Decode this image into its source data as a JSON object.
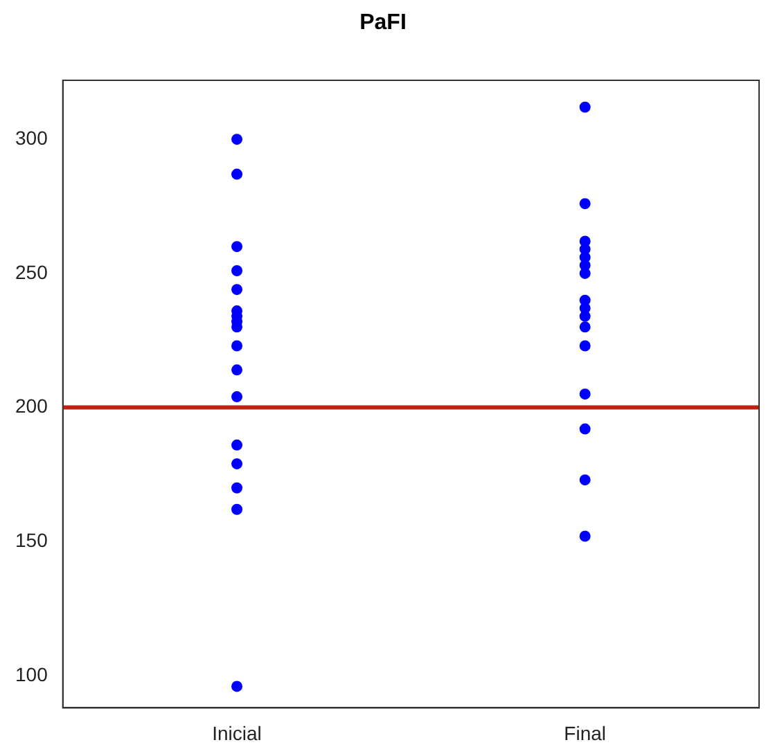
{
  "chart_data": {
    "type": "scatter",
    "title": "PaFI",
    "categories": [
      "Inicial",
      "Final"
    ],
    "series": [
      {
        "color": "#0000ff",
        "x": [
          "Inicial",
          "Inicial",
          "Inicial",
          "Inicial",
          "Inicial",
          "Inicial",
          "Inicial",
          "Inicial",
          "Inicial",
          "Inicial",
          "Inicial",
          "Inicial",
          "Inicial",
          "Inicial",
          "Inicial",
          "Inicial",
          "Inicial",
          "Inicial"
        ],
        "values": [
          300,
          287,
          260,
          251,
          244,
          236,
          234,
          232,
          230,
          223,
          214,
          204,
          186,
          179,
          170,
          162,
          96,
          null
        ]
      },
      {
        "color": "#0000ff",
        "x": [
          "Final",
          "Final",
          "Final",
          "Final",
          "Final",
          "Final",
          "Final",
          "Final",
          "Final",
          "Final",
          "Final",
          "Final",
          "Final",
          "Final",
          "Final",
          "Final",
          "Final",
          "Final"
        ],
        "values": [
          312,
          276,
          262,
          259,
          256,
          253,
          250,
          240,
          237,
          234,
          230,
          223,
          205,
          192,
          173,
          152,
          null,
          null
        ]
      }
    ],
    "marker": "circle",
    "ylim": [
      88,
      322
    ],
    "yticks": [
      100,
      150,
      200,
      250,
      300
    ],
    "grid": false,
    "legend": false,
    "ref_lines": [
      {
        "axis": "y",
        "value": 200,
        "color": "#c0200f"
      }
    ]
  }
}
